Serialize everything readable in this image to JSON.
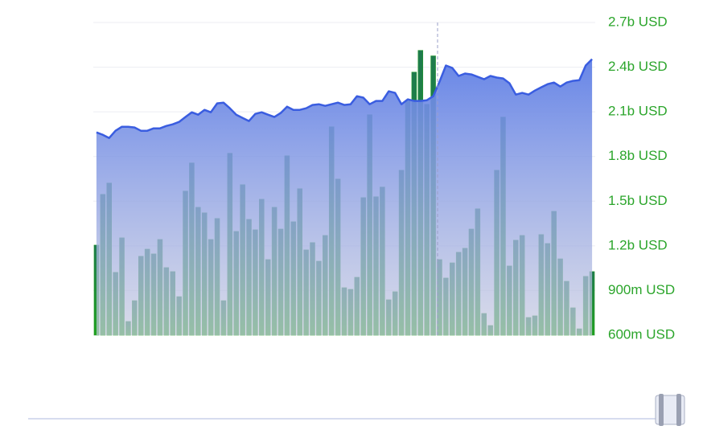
{
  "chart_data": {
    "type": "bar",
    "ylim": [
      600000000.0,
      2700000000.0
    ],
    "yticks": [
      {
        "value": 600000000.0,
        "label": "600m USD"
      },
      {
        "value": 900000000.0,
        "label": "900m USD"
      },
      {
        "value": 1200000000.0,
        "label": "1.2b USD"
      },
      {
        "value": 1500000000.0,
        "label": "1.5b USD"
      },
      {
        "value": 1800000000.0,
        "label": "1.8b USD"
      },
      {
        "value": 2100000000.0,
        "label": "2.1b USD"
      },
      {
        "value": 2400000000.0,
        "label": "2.4b USD"
      },
      {
        "value": 2700000000.0,
        "label": "2.7b USD"
      }
    ],
    "grid": true,
    "series": [
      {
        "type": "bar",
        "color": "#1f9a1f",
        "values": [
          1205000000.0,
          1546000000.0,
          1622000000.0,
          1022000000.0,
          1254000000.0,
          692000000.0,
          832000000.0,
          1130000000.0,
          1178000000.0,
          1146000000.0,
          1243000000.0,
          1054000000.0,
          1027000000.0,
          859000000.0,
          1568000000.0,
          1757000000.0,
          1459000000.0,
          1422000000.0,
          1243000000.0,
          1384000000.0,
          832000000.0,
          1822000000.0,
          1297000000.0,
          1611000000.0,
          1378000000.0,
          1308000000.0,
          1513000000.0,
          1108000000.0,
          1459000000.0,
          1313000000.0,
          1805000000.0,
          1362000000.0,
          1584000000.0,
          1173000000.0,
          1222000000.0,
          1097000000.0,
          1270000000.0,
          2000000000.0,
          1649000000.0,
          919000000.0,
          908000000.0,
          989000000.0,
          1524000000.0,
          2081000000.0,
          1530000000.0,
          1595000000.0,
          838000000.0,
          892000000.0,
          1708000000.0,
          2173000000.0,
          2367000000.0,
          2513000000.0,
          2151000000.0,
          2476000000.0,
          1108000000.0,
          984000000.0,
          1086000000.0,
          1157000000.0,
          1184000000.0,
          1313000000.0,
          1449000000.0,
          746000000.0,
          665000000.0,
          1708000000.0,
          2065000000.0,
          1065000000.0,
          1238000000.0,
          1270000000.0,
          719000000.0,
          730000000.0,
          1276000000.0,
          1216000000.0,
          1432000000.0,
          1113000000.0,
          962000000.0,
          784000000.0,
          643000000.0,
          995000000.0,
          1027000000.0
        ]
      },
      {
        "type": "line",
        "color": "#3a5de0",
        "values": [
          1962000000.0,
          1946000000.0,
          1924000000.0,
          1973000000.0,
          2000000000.0,
          2000000000.0,
          1995000000.0,
          1973000000.0,
          1973000000.0,
          1989000000.0,
          1989000000.0,
          2005000000.0,
          2016000000.0,
          2032000000.0,
          2065000000.0,
          2097000000.0,
          2081000000.0,
          2113000000.0,
          2097000000.0,
          2157000000.0,
          2162000000.0,
          2124000000.0,
          2081000000.0,
          2059000000.0,
          2038000000.0,
          2086000000.0,
          2097000000.0,
          2081000000.0,
          2065000000.0,
          2092000000.0,
          2135000000.0,
          2113000000.0,
          2113000000.0,
          2124000000.0,
          2146000000.0,
          2151000000.0,
          2140000000.0,
          2151000000.0,
          2162000000.0,
          2146000000.0,
          2151000000.0,
          2205000000.0,
          2195000000.0,
          2151000000.0,
          2173000000.0,
          2173000000.0,
          2238000000.0,
          2227000000.0,
          2151000000.0,
          2184000000.0,
          2173000000.0,
          2173000000.0,
          2178000000.0,
          2205000000.0,
          2303000000.0,
          2411000000.0,
          2395000000.0,
          2341000000.0,
          2357000000.0,
          2351000000.0,
          2335000000.0,
          2319000000.0,
          2341000000.0,
          2330000000.0,
          2324000000.0,
          2292000000.0,
          2216000000.0,
          2227000000.0,
          2216000000.0,
          2243000000.0,
          2265000000.0,
          2286000000.0,
          2297000000.0,
          2270000000.0,
          2297000000.0,
          2308000000.0,
          2313000000.0,
          2411000000.0,
          2454000000.0
        ]
      }
    ]
  }
}
